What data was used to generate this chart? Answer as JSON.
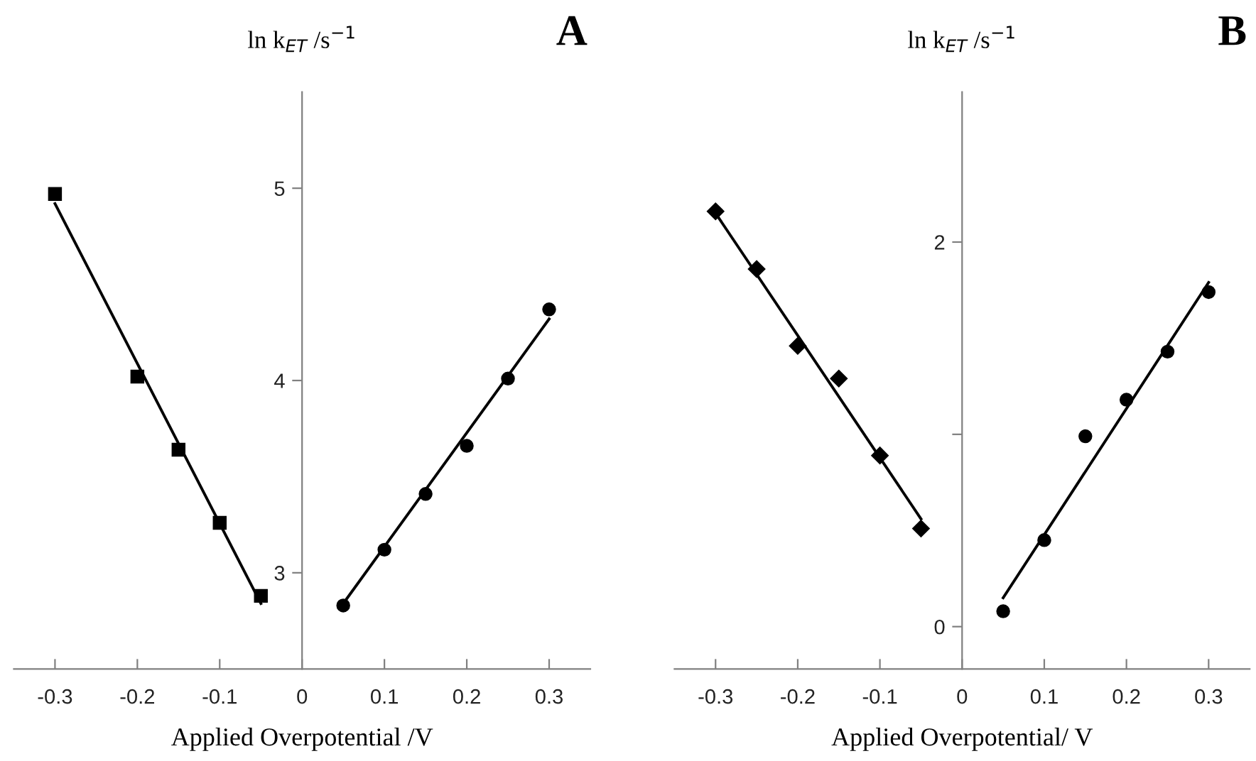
{
  "chart_data": [
    {
      "type": "scatter",
      "title": "A",
      "ylabel": "ln k$_{ET}$ /s$^{−1}$",
      "xlabel": "Applied Overpotential /V",
      "xlim": [
        -0.35,
        0.35
      ],
      "ylim": [
        2.5,
        5.5
      ],
      "xticks": [
        -0.3,
        -0.2,
        -0.1,
        0,
        0.1,
        0.2,
        0.3
      ],
      "yticks": [
        3,
        4,
        5
      ],
      "grid": false,
      "legend": false,
      "series": [
        {
          "marker": "square",
          "color": "#000000",
          "x": [
            -0.3,
            -0.2,
            -0.15,
            -0.1,
            -0.05
          ],
          "values": [
            4.97,
            4.02,
            3.64,
            3.26,
            2.88
          ]
        },
        {
          "type": "line",
          "marker": "none",
          "color": "#000000",
          "x": [
            -0.3,
            -0.05
          ],
          "values": [
            4.92,
            2.84
          ]
        },
        {
          "marker": "circle",
          "color": "#000000",
          "x": [
            0.05,
            0.1,
            0.15,
            0.2,
            0.25,
            0.3
          ],
          "values": [
            2.83,
            3.12,
            3.41,
            3.66,
            4.01,
            4.37
          ]
        },
        {
          "type": "line",
          "marker": "none",
          "color": "#000000",
          "x": [
            0.05,
            0.3
          ],
          "values": [
            2.84,
            4.32
          ]
        }
      ]
    },
    {
      "type": "scatter",
      "title": "B",
      "ylabel": "ln k$_{ET}$ /s$^{−1}$",
      "xlabel": "Applied Overpotential/ V",
      "xlim": [
        -0.35,
        0.35
      ],
      "ylim": [
        -0.22,
        2.78
      ],
      "xticks": [
        -0.3,
        -0.2,
        -0.1,
        0,
        0.1,
        0.2,
        0.3
      ],
      "yticks": [
        0,
        {
          "value": 1,
          "label": null
        },
        2
      ],
      "grid": false,
      "legend": false,
      "series": [
        {
          "marker": "diamond",
          "color": "#000000",
          "x": [
            -0.3,
            -0.25,
            -0.2,
            -0.15,
            -0.1,
            -0.05
          ],
          "values": [
            2.16,
            1.86,
            1.46,
            1.29,
            0.89,
            0.51
          ]
        },
        {
          "type": "line",
          "marker": "none",
          "color": "#000000",
          "x": [
            -0.3,
            -0.05
          ],
          "values": [
            2.15,
            0.56
          ]
        },
        {
          "marker": "circle",
          "color": "#000000",
          "x": [
            0.05,
            0.1,
            0.15,
            0.2,
            0.25,
            0.3
          ],
          "values": [
            0.08,
            0.45,
            0.99,
            1.18,
            1.43,
            1.74
          ]
        },
        {
          "type": "line",
          "marker": "none",
          "color": "#000000",
          "x": [
            0.05,
            0.3
          ],
          "values": [
            0.15,
            1.79
          ]
        }
      ]
    }
  ]
}
